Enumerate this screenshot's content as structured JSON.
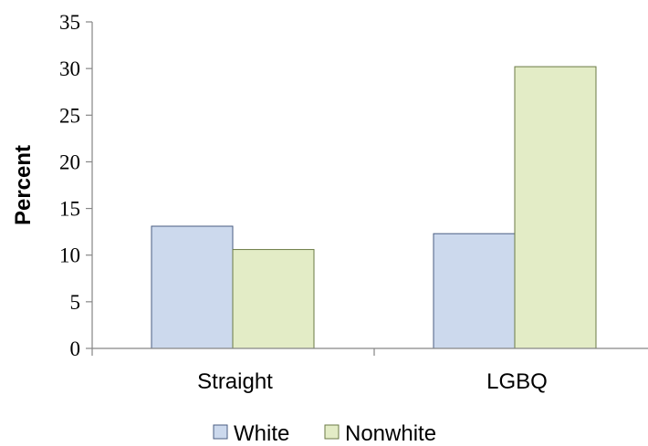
{
  "chart_data": {
    "type": "bar",
    "categories": [
      "Straight",
      "LGBQ"
    ],
    "series": [
      {
        "name": "White",
        "values": [
          13.1,
          12.3
        ],
        "color": "#ccd9ed",
        "stroke": "#4a5d82"
      },
      {
        "name": "Nonwhite",
        "values": [
          10.6,
          30.2
        ],
        "color": "#e3ecc6",
        "stroke": "#6b7a45"
      }
    ],
    "title": "",
    "xlabel": "",
    "ylabel": "Percent",
    "ylim": [
      0,
      35
    ],
    "yticks": [
      0,
      5,
      10,
      15,
      20,
      25,
      30,
      35
    ],
    "grid": false,
    "legend": "bottom"
  }
}
